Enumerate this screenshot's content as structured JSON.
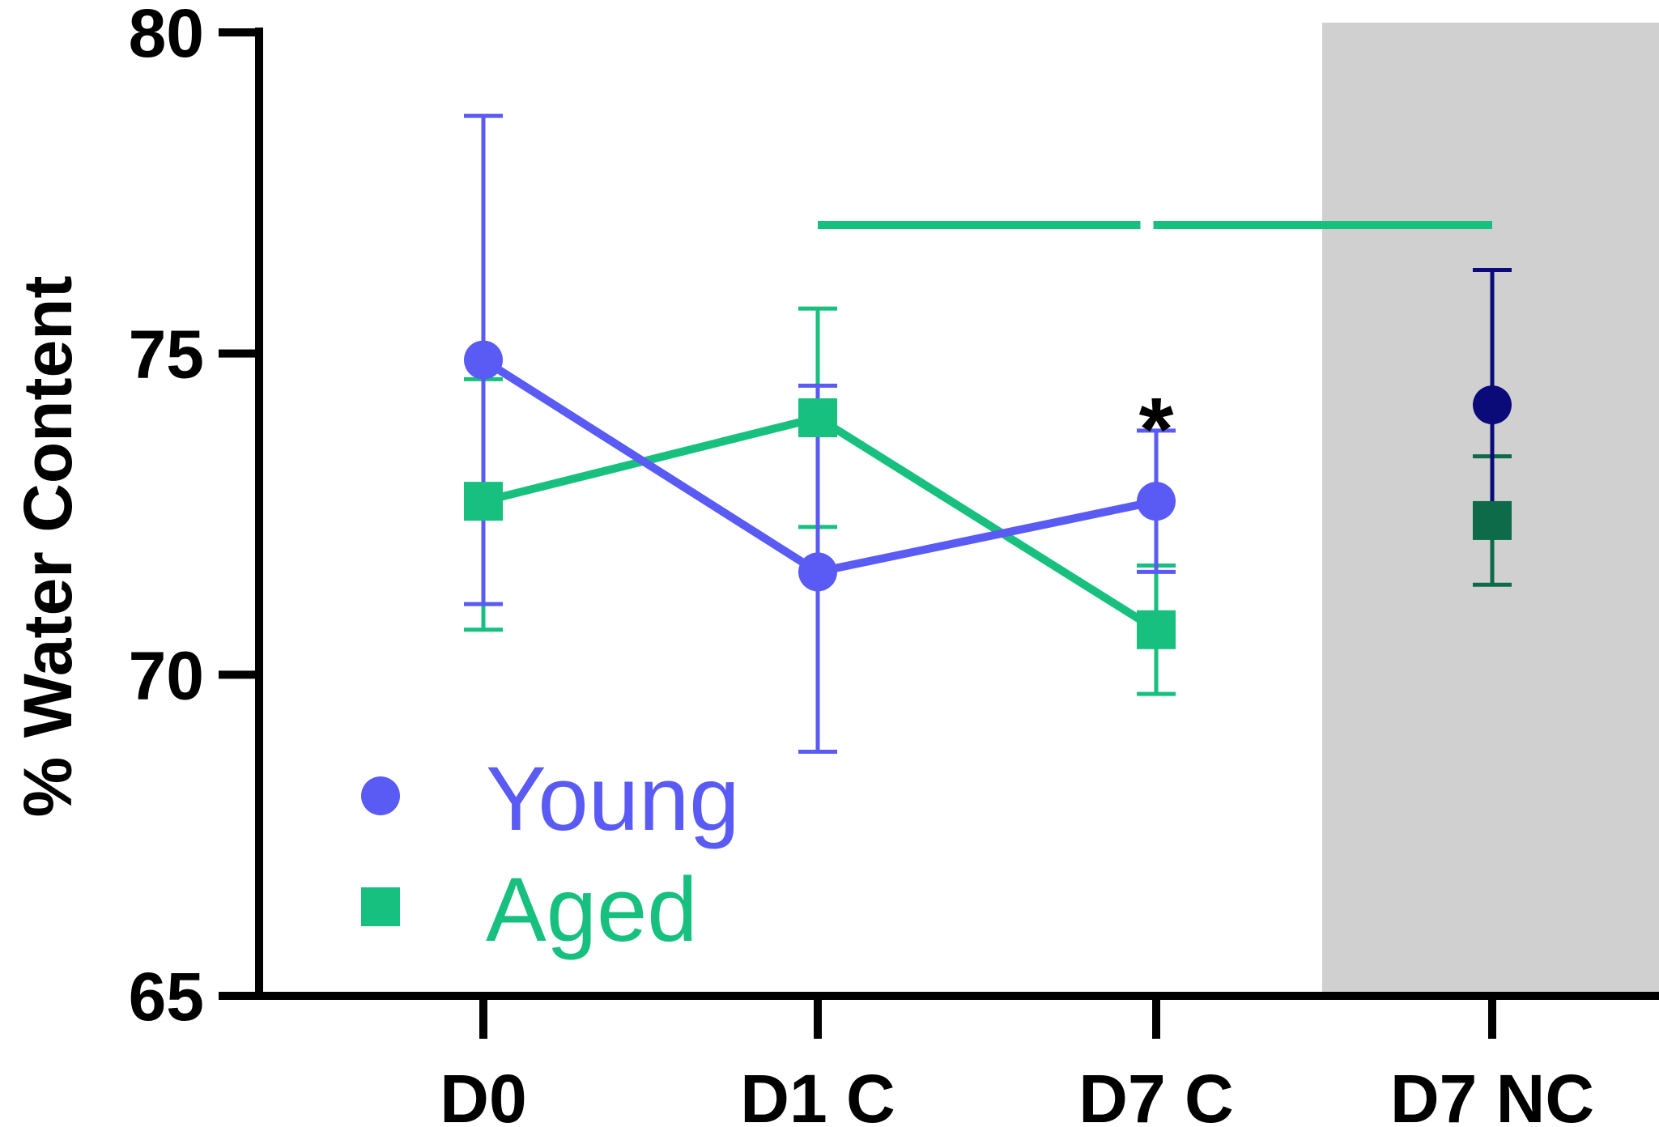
{
  "chart_data": {
    "type": "line",
    "title": "",
    "xlabel": "",
    "ylabel": "% Water Content",
    "ylim": [
      65,
      80
    ],
    "yticks": [
      65,
      70,
      75,
      80
    ],
    "ytick_labels": [
      "65",
      "70",
      "75",
      "80"
    ],
    "categories": [
      "D0",
      "D1 C",
      "D7 C",
      "D7 NC"
    ],
    "grid": false,
    "shaded_region": {
      "from_category": "D7 NC",
      "color": "#d0d0d0"
    },
    "legend": {
      "position": "bottom-left",
      "entries": [
        {
          "label": "Young",
          "marker": "circle",
          "color": "#5a5af5"
        },
        {
          "label": "Aged",
          "marker": "square",
          "color": "#17c07e"
        }
      ]
    },
    "series": [
      {
        "name": "Young",
        "marker": "circle",
        "color": "#5a5af5",
        "connected_points": 3,
        "values": [
          74.9,
          71.6,
          72.7,
          74.2
        ],
        "err_low": [
          71.1,
          68.8,
          71.6,
          72.3
        ],
        "err_high": [
          78.7,
          74.5,
          73.8,
          76.3
        ],
        "point_colors": [
          "#5a5af5",
          "#5a5af5",
          "#5a5af5",
          "#0a0a78"
        ]
      },
      {
        "name": "Aged",
        "marker": "square",
        "color": "#17c07e",
        "connected_points": 3,
        "values": [
          72.7,
          74.0,
          70.7,
          72.4
        ],
        "err_low": [
          70.7,
          72.3,
          69.7,
          71.4
        ],
        "err_high": [
          74.6,
          75.7,
          71.7,
          73.4
        ],
        "point_colors": [
          "#17c07e",
          "#17c07e",
          "#17c07e",
          "#0d6b4a"
        ]
      }
    ],
    "annotations": [
      {
        "type": "text",
        "text": "*",
        "category": "D7 C",
        "y": 74.3
      },
      {
        "type": "bracket",
        "from_category": "D1 C",
        "to_category": "D7 NC",
        "y": 77.0,
        "color": "#17c07e"
      }
    ]
  }
}
